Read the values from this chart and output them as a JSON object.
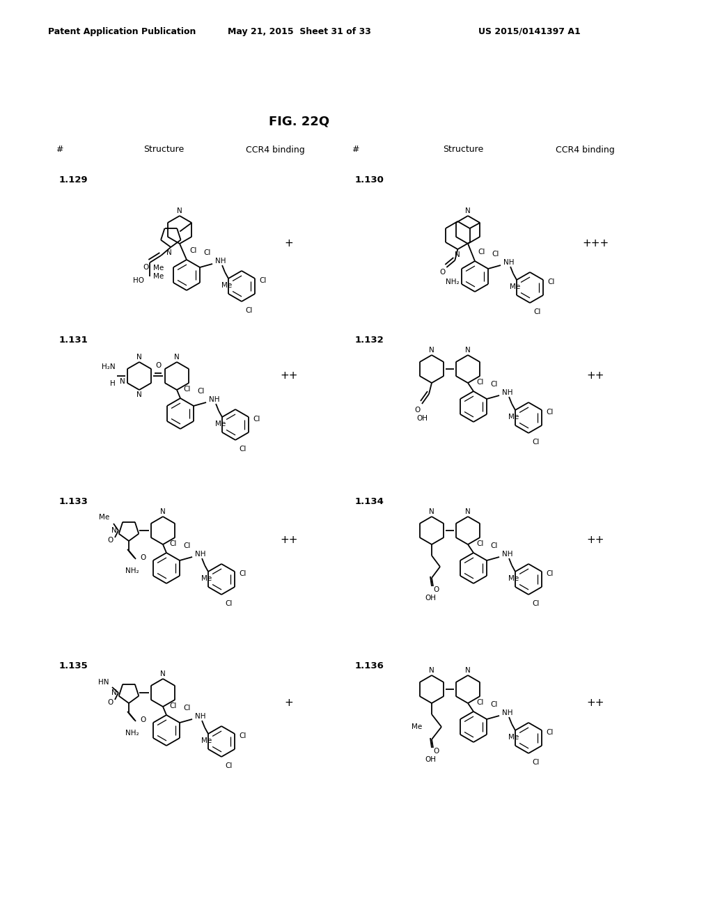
{
  "background_color": "#ffffff",
  "page_header_left": "Patent Application Publication",
  "page_header_mid": "May 21, 2015  Sheet 31 of 33",
  "page_header_right": "US 2015/0141397 A1",
  "figure_title": "FIG. 22Q",
  "compounds": [
    {
      "id": "1.129",
      "binding": "+",
      "col": 0,
      "row": 0
    },
    {
      "id": "1.130",
      "binding": "+++",
      "col": 1,
      "row": 0
    },
    {
      "id": "1.131",
      "binding": "++",
      "col": 0,
      "row": 1
    },
    {
      "id": "1.132",
      "binding": "++",
      "col": 1,
      "row": 1
    },
    {
      "id": "1.133",
      "binding": "++",
      "col": 0,
      "row": 2
    },
    {
      "id": "1.134",
      "binding": "++",
      "col": 1,
      "row": 2
    },
    {
      "id": "1.135",
      "binding": "+",
      "col": 0,
      "row": 3
    },
    {
      "id": "1.136",
      "binding": "++",
      "col": 1,
      "row": 3
    }
  ]
}
